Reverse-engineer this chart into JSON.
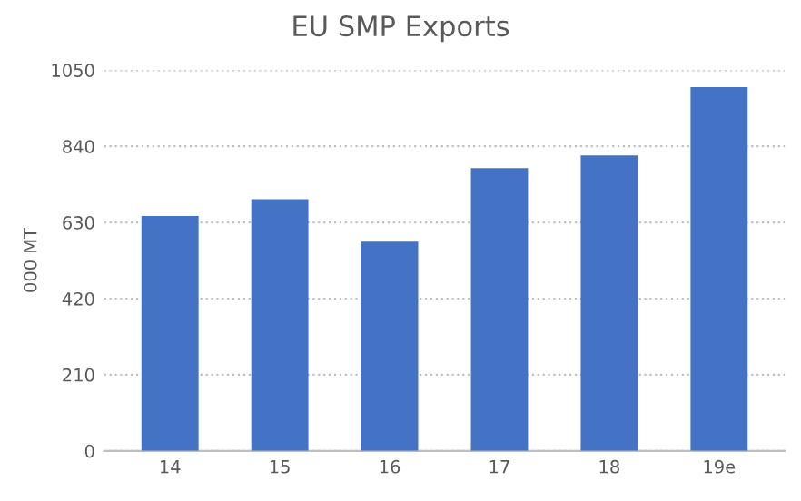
{
  "chart_data": {
    "type": "bar",
    "title": "EU SMP Exports",
    "ylabel": "000 MT",
    "categories": [
      "14",
      "15",
      "16",
      "17",
      "18",
      "19e"
    ],
    "values": [
      648,
      694,
      577,
      780,
      815,
      1003
    ],
    "color": "#4472c4",
    "ylim": [
      0,
      1050
    ],
    "yticks": [
      0,
      210,
      420,
      630,
      840,
      1050
    ],
    "grid": "y"
  }
}
